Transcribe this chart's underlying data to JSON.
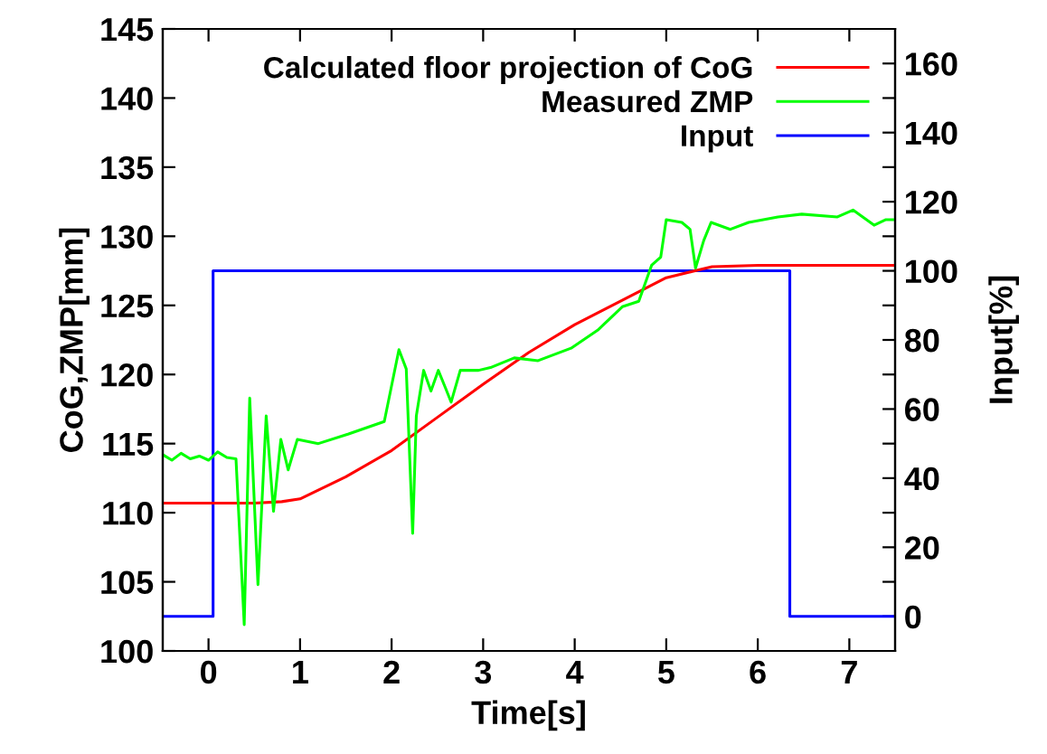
{
  "chart_data": {
    "type": "line",
    "xlabel": "Time[s]",
    "ylabel": "CoG,ZMP[mm]",
    "y2label": "Input[%]",
    "xlim": [
      -0.5,
      7.5
    ],
    "xticks": [
      0,
      1,
      2,
      3,
      4,
      5,
      6,
      7
    ],
    "ylim": [
      100,
      145
    ],
    "yticks": [
      100,
      105,
      110,
      115,
      120,
      125,
      130,
      135,
      140,
      145
    ],
    "y2lim": [
      -10,
      170
    ],
    "y2ticks": [
      0,
      {
        "value": 10,
        "label": null
      },
      20,
      {
        "value": 30,
        "label": null
      },
      40,
      {
        "value": 50,
        "label": null
      },
      60,
      {
        "value": 70,
        "label": null
      },
      80,
      {
        "value": 90,
        "label": null
      },
      100,
      {
        "value": 110,
        "label": null
      },
      120,
      {
        "value": 130,
        "label": null
      },
      140,
      {
        "value": 150,
        "label": null
      },
      160
    ],
    "legend": "top right",
    "grid": false,
    "series": [
      {
        "name": "Calculated floor projection of CoG",
        "color": "#ff0000",
        "x": [
          -0.5,
          0.5,
          0.8,
          1.0,
          1.5,
          2.0,
          2.5,
          3.0,
          3.5,
          4.0,
          4.5,
          5.0,
          5.5,
          6.0,
          7.5
        ],
        "values": [
          110.7,
          110.7,
          110.8,
          111.0,
          112.6,
          114.5,
          116.9,
          119.3,
          121.6,
          123.6,
          125.3,
          127.0,
          127.8,
          127.9,
          127.9
        ]
      },
      {
        "name": "Measured ZMP",
        "color": "#00ff00",
        "x": [
          -0.5,
          -0.4,
          -0.3,
          -0.2,
          -0.1,
          0.0,
          0.1,
          0.2,
          0.3,
          0.39,
          0.45,
          0.54,
          0.63,
          0.71,
          0.79,
          0.87,
          0.97,
          1.2,
          1.53,
          1.92,
          2.08,
          2.16,
          2.23,
          2.27,
          2.35,
          2.43,
          2.51,
          2.59,
          2.65,
          2.75,
          2.95,
          3.08,
          3.34,
          3.6,
          3.96,
          4.25,
          4.52,
          4.7,
          4.84,
          4.94,
          5.0,
          5.17,
          5.26,
          5.32,
          5.41,
          5.49,
          5.7,
          5.9,
          6.22,
          6.48,
          6.87,
          7.04,
          7.27,
          7.4,
          7.5
        ],
        "values": [
          114.2,
          113.8,
          114.3,
          113.9,
          114.1,
          113.8,
          114.4,
          114.0,
          113.9,
          101.9,
          118.3,
          104.8,
          117.0,
          110.1,
          115.3,
          113.1,
          115.3,
          115.0,
          115.7,
          116.6,
          121.8,
          120.4,
          108.5,
          117.0,
          120.3,
          118.8,
          120.3,
          119.0,
          118.0,
          120.3,
          120.3,
          120.5,
          121.2,
          121.0,
          121.9,
          123.2,
          124.9,
          125.3,
          127.9,
          128.5,
          131.2,
          131.0,
          130.5,
          127.7,
          129.7,
          131.0,
          130.5,
          131.0,
          131.4,
          131.6,
          131.4,
          131.9,
          130.8,
          131.2,
          131.2
        ]
      },
      {
        "name": "Input",
        "type": "step",
        "axis": "y2",
        "color": "#0000ff",
        "x": [
          -0.5,
          0.05,
          6.35,
          7.5
        ],
        "values": [
          0,
          100,
          0,
          0
        ]
      }
    ]
  }
}
